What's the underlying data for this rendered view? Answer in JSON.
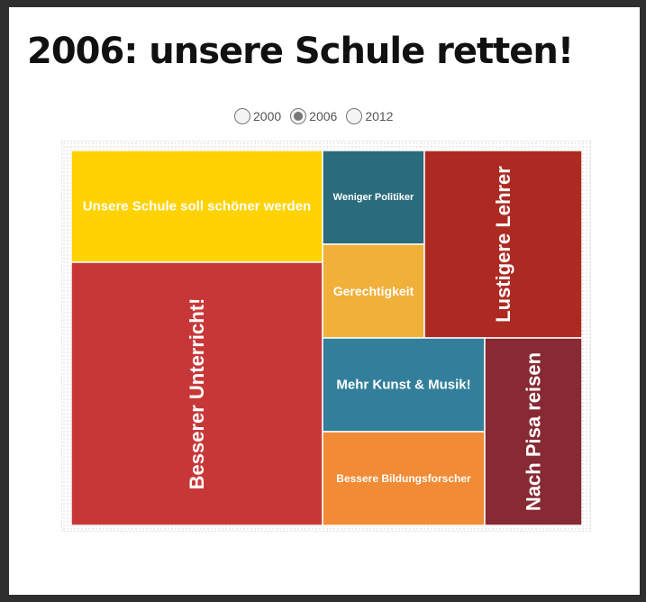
{
  "header": {
    "title": "2006: unsere Schule retten!"
  },
  "year_selector": {
    "options": [
      {
        "label": "2000",
        "selected": false
      },
      {
        "label": "2006",
        "selected": true
      },
      {
        "label": "2012",
        "selected": false
      }
    ]
  },
  "chart_data": {
    "type": "treemap",
    "title": "2006: unsere Schule retten!",
    "items": [
      {
        "label": "Unsere Schule soll schöner werden",
        "value": 35,
        "color": "#FFD200"
      },
      {
        "label": "Besserer Unterricht!",
        "value": 81,
        "color": "#C83737"
      },
      {
        "label": "Weniger Politiker",
        "value": 11,
        "color": "#2A6B7C"
      },
      {
        "label": "Gerechtigkeit",
        "value": 11,
        "color": "#F0B03A"
      },
      {
        "label": "Lustigere Lehrer",
        "value": 30,
        "color": "#AD2A22"
      },
      {
        "label": "Mehr Kunst & Musik!",
        "value": 17,
        "color": "#337F9B"
      },
      {
        "label": "Bessere Bildungsforscher",
        "value": 17,
        "color": "#F28B35"
      },
      {
        "label": "Nach Pisa reisen",
        "value": 19,
        "color": "#872A33"
      }
    ]
  }
}
